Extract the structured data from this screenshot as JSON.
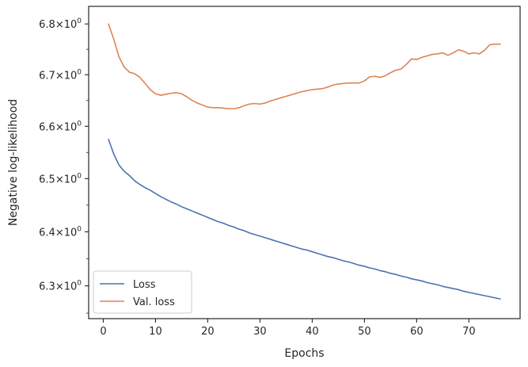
{
  "chart_data": {
    "type": "line",
    "title": "",
    "xlabel": "Epochs",
    "ylabel": "Negative log-likelihood",
    "xlim": [
      -2.8,
      79.8
    ],
    "ylim": [
      6.24,
      6.835
    ],
    "yscale": "log",
    "grid": false,
    "legend_position": "lower-left",
    "x_ticks": [
      0,
      10,
      20,
      30,
      40,
      50,
      60,
      70
    ],
    "x_tick_labels": [
      "0",
      "10",
      "20",
      "30",
      "40",
      "50",
      "60",
      "70"
    ],
    "y_ticks": [
      6.3,
      6.4,
      6.5,
      6.6,
      6.7,
      6.8
    ],
    "y_tick_labels": [
      {
        "mantissa": "6.3",
        "base": "10",
        "exponent": "0"
      },
      {
        "mantissa": "6.4",
        "base": "10",
        "exponent": "0"
      },
      {
        "mantissa": "6.5",
        "base": "10",
        "exponent": "0"
      },
      {
        "mantissa": "6.6",
        "base": "10",
        "exponent": "0"
      },
      {
        "mantissa": "6.7",
        "base": "10",
        "exponent": "0"
      },
      {
        "mantissa": "6.8",
        "base": "10",
        "exponent": "0"
      }
    ],
    "series": [
      {
        "name": "Loss",
        "color": "#4c72b0",
        "x": [
          1,
          2,
          3,
          4,
          5,
          6,
          7,
          8,
          9,
          10,
          11,
          12,
          13,
          14,
          15,
          16,
          17,
          18,
          19,
          20,
          21,
          22,
          23,
          24,
          25,
          26,
          27,
          28,
          29,
          30,
          31,
          32,
          33,
          34,
          35,
          36,
          37,
          38,
          39,
          40,
          41,
          42,
          43,
          44,
          45,
          46,
          47,
          48,
          49,
          50,
          51,
          52,
          53,
          54,
          55,
          56,
          57,
          58,
          59,
          60,
          61,
          62,
          63,
          64,
          65,
          66,
          67,
          68,
          69,
          70,
          71,
          72,
          73,
          74,
          75,
          76
        ],
        "y": [
          6.575,
          6.547,
          6.526,
          6.514,
          6.506,
          6.496,
          6.489,
          6.483,
          6.478,
          6.472,
          6.466,
          6.461,
          6.456,
          6.452,
          6.447,
          6.443,
          6.439,
          6.435,
          6.431,
          6.427,
          6.423,
          6.419,
          6.416,
          6.412,
          6.409,
          6.405,
          6.402,
          6.398,
          6.395,
          6.392,
          6.389,
          6.386,
          6.383,
          6.38,
          6.377,
          6.374,
          6.371,
          6.368,
          6.366,
          6.363,
          6.36,
          6.357,
          6.354,
          6.352,
          6.349,
          6.346,
          6.344,
          6.341,
          6.338,
          6.336,
          6.333,
          6.331,
          6.328,
          6.326,
          6.323,
          6.321,
          6.318,
          6.316,
          6.313,
          6.311,
          6.309,
          6.306,
          6.304,
          6.302,
          6.299,
          6.297,
          6.295,
          6.293,
          6.29,
          6.288,
          6.286,
          6.284,
          6.282,
          6.28,
          6.278,
          6.276
        ]
      },
      {
        "name": "Val. loss",
        "color": "#dd8452",
        "x": [
          1,
          2,
          3,
          4,
          5,
          6,
          7,
          8,
          9,
          10,
          11,
          12,
          13,
          14,
          15,
          16,
          17,
          18,
          19,
          20,
          21,
          22,
          23,
          24,
          25,
          26,
          27,
          28,
          29,
          30,
          31,
          32,
          33,
          34,
          35,
          36,
          37,
          38,
          39,
          40,
          41,
          42,
          43,
          44,
          45,
          46,
          47,
          48,
          49,
          50,
          51,
          52,
          53,
          54,
          55,
          56,
          57,
          58,
          59,
          60,
          61,
          62,
          63,
          64,
          65,
          66,
          67,
          68,
          69,
          70,
          71,
          72,
          73,
          74,
          75,
          76
        ],
        "y": [
          6.8,
          6.77,
          6.735,
          6.715,
          6.705,
          6.702,
          6.695,
          6.683,
          6.671,
          6.663,
          6.66,
          6.662,
          6.664,
          6.665,
          6.663,
          6.657,
          6.65,
          6.645,
          6.641,
          6.637,
          6.636,
          6.636,
          6.635,
          6.634,
          6.634,
          6.636,
          6.64,
          6.643,
          6.644,
          6.643,
          6.645,
          6.649,
          6.652,
          6.655,
          6.658,
          6.661,
          6.664,
          6.667,
          6.669,
          6.671,
          6.672,
          6.673,
          6.676,
          6.68,
          6.682,
          6.683,
          6.684,
          6.684,
          6.684,
          6.688,
          6.696,
          6.697,
          6.695,
          6.698,
          6.704,
          6.709,
          6.711,
          6.72,
          6.731,
          6.73,
          6.734,
          6.737,
          6.74,
          6.741,
          6.743,
          6.738,
          6.743,
          6.749,
          6.746,
          6.741,
          6.743,
          6.741,
          6.748,
          6.759,
          6.76,
          6.76
        ]
      }
    ]
  }
}
